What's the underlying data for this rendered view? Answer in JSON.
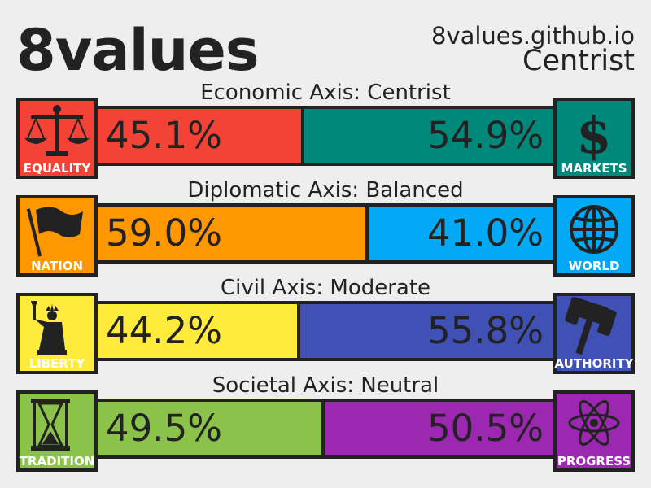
{
  "header": {
    "logo": "8values",
    "site": "8values.github.io",
    "ideology": "Centrist"
  },
  "axes": [
    {
      "title": "Economic Axis: Centrist",
      "left": {
        "label": "EQUALITY",
        "percent_text": "45.1%",
        "value": 45.1,
        "color": "#f44336",
        "icon": "scales-icon"
      },
      "right": {
        "label": "MARKETS",
        "percent_text": "54.9%",
        "value": 54.9,
        "color": "#00897b",
        "icon": "dollar-icon"
      }
    },
    {
      "title": "Diplomatic Axis: Balanced",
      "left": {
        "label": "NATION",
        "percent_text": "59.0%",
        "value": 59.0,
        "color": "#ff9800",
        "icon": "flag-icon"
      },
      "right": {
        "label": "WORLD",
        "percent_text": "41.0%",
        "value": 41.0,
        "color": "#03a9f4",
        "icon": "globe-icon"
      }
    },
    {
      "title": "Civil Axis: Moderate",
      "left": {
        "label": "LIBERTY",
        "percent_text": "44.2%",
        "value": 44.2,
        "color": "#ffeb3b",
        "icon": "statue-of-liberty-icon"
      },
      "right": {
        "label": "AUTHORITY",
        "percent_text": "55.8%",
        "value": 55.8,
        "color": "#3f51b5",
        "icon": "gavel-icon"
      }
    },
    {
      "title": "Societal Axis: Neutral",
      "left": {
        "label": "TRADITION",
        "percent_text": "49.5%",
        "value": 49.5,
        "color": "#8bc34a",
        "icon": "hourglass-icon"
      },
      "right": {
        "label": "PROGRESS",
        "percent_text": "50.5%",
        "value": 50.5,
        "color": "#9c27b0",
        "icon": "atom-icon"
      }
    }
  ]
}
